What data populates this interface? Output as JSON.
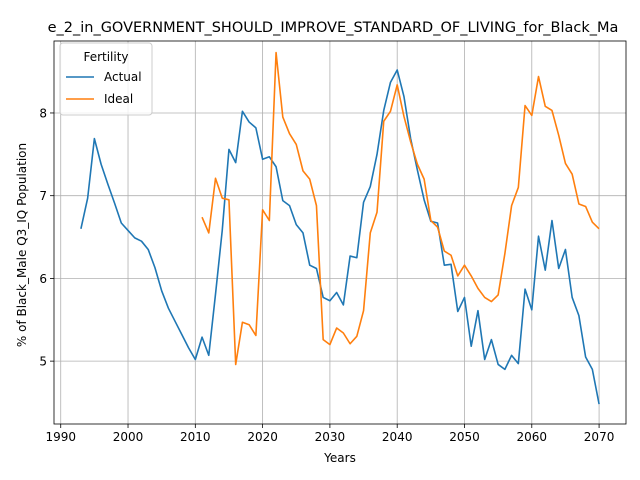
{
  "chart_data": {
    "type": "line",
    "title": "e_2_in_GOVERNMENT_SHOULD_IMPROVE_STANDARD_OF_LIVING_for_Black_Ma",
    "xlabel": "Years",
    "ylabel": "% of Black_Male Q3_IQ Population",
    "xlim": [
      1989,
      2074
    ],
    "ylim": [
      4.24,
      8.87
    ],
    "xticks": [
      1990,
      2000,
      2010,
      2020,
      2030,
      2040,
      2050,
      2060,
      2070
    ],
    "yticks": [
      5,
      6,
      7,
      8
    ],
    "grid": true,
    "legend": {
      "title": "Fertility",
      "placement": "top-left"
    },
    "series": [
      {
        "name": "Actual",
        "color": "#1f77b4",
        "x": [
          1993,
          1994,
          1995,
          1996,
          1997,
          1998,
          1999,
          2000,
          2001,
          2002,
          2003,
          2004,
          2005,
          2006,
          2007,
          2008,
          2009,
          2010,
          2011,
          2012,
          2013,
          2014,
          2015,
          2016,
          2017,
          2018,
          2019,
          2020,
          2021,
          2022,
          2023,
          2024,
          2025,
          2026,
          2027,
          2028,
          2029,
          2030,
          2031,
          2032,
          2033,
          2034,
          2035,
          2036,
          2037,
          2038,
          2039,
          2040,
          2041,
          2042,
          2043,
          2044,
          2045,
          2046,
          2047,
          2048,
          2049,
          2050,
          2051,
          2052,
          2053,
          2054,
          2055,
          2056,
          2057,
          2058,
          2059,
          2060,
          2061,
          2062,
          2063,
          2064,
          2065,
          2066,
          2067,
          2068,
          2069,
          2070
        ],
        "values": [
          6.6,
          6.97,
          7.69,
          7.38,
          7.14,
          6.91,
          6.67,
          6.58,
          6.49,
          6.45,
          6.35,
          6.13,
          5.85,
          5.64,
          5.48,
          5.32,
          5.16,
          5.02,
          5.29,
          5.07,
          5.81,
          6.58,
          7.56,
          7.4,
          8.02,
          7.89,
          7.82,
          7.44,
          7.47,
          7.35,
          6.94,
          6.88,
          6.65,
          6.55,
          6.16,
          6.12,
          5.77,
          5.73,
          5.83,
          5.68,
          6.27,
          6.25,
          6.92,
          7.11,
          7.5,
          8.03,
          8.37,
          8.52,
          8.2,
          7.69,
          7.31,
          6.95,
          6.69,
          6.67,
          6.16,
          6.17,
          5.6,
          5.77,
          5.18,
          5.61,
          5.02,
          5.26,
          4.96,
          4.9,
          5.07,
          4.97,
          5.87,
          5.62,
          6.51,
          6.1,
          6.7,
          6.12,
          6.35,
          5.77,
          5.55,
          5.05,
          4.9,
          4.48
        ]
      },
      {
        "name": "Ideal",
        "color": "#ff7f0e",
        "x": [
          2011,
          2012,
          2013,
          2014,
          2015,
          2016,
          2017,
          2018,
          2019,
          2020,
          2021,
          2022,
          2023,
          2024,
          2025,
          2026,
          2027,
          2028,
          2029,
          2030,
          2031,
          2032,
          2033,
          2034,
          2035,
          2036,
          2037,
          2038,
          2039,
          2040,
          2041,
          2042,
          2043,
          2044,
          2045,
          2046,
          2047,
          2048,
          2049,
          2050,
          2051,
          2052,
          2053,
          2054,
          2055,
          2056,
          2057,
          2058,
          2059,
          2060,
          2061,
          2062,
          2063,
          2064,
          2065,
          2066,
          2067,
          2068,
          2069,
          2070
        ],
        "values": [
          6.74,
          6.55,
          7.21,
          6.97,
          6.95,
          4.96,
          5.47,
          5.44,
          5.31,
          6.83,
          6.7,
          8.73,
          7.95,
          7.75,
          7.62,
          7.3,
          7.2,
          6.88,
          5.26,
          5.2,
          5.4,
          5.34,
          5.21,
          5.3,
          5.61,
          6.55,
          6.8,
          7.9,
          8.02,
          8.34,
          7.96,
          7.65,
          7.38,
          7.2,
          6.7,
          6.62,
          6.33,
          6.28,
          6.03,
          6.16,
          6.03,
          5.88,
          5.77,
          5.72,
          5.8,
          6.3,
          6.88,
          7.1,
          8.09,
          7.97,
          8.44,
          8.08,
          8.03,
          7.73,
          7.39,
          7.26,
          6.9,
          6.87,
          6.68,
          6.6
        ]
      }
    ]
  }
}
